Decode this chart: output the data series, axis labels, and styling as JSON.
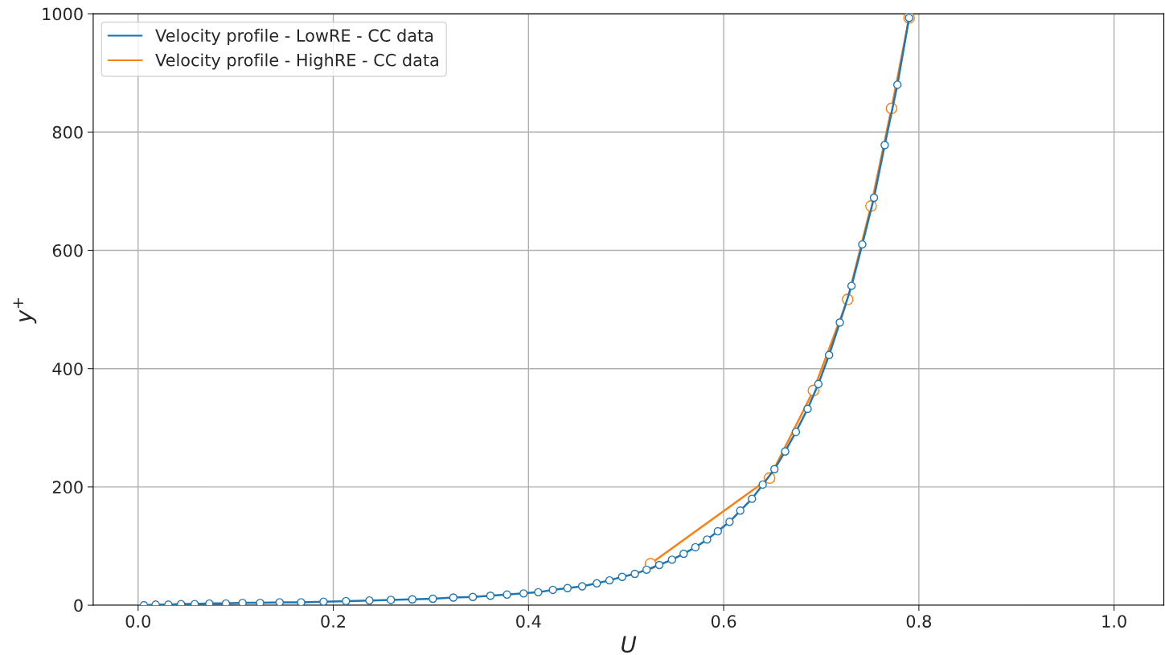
{
  "chart_data": {
    "type": "line",
    "xlabel": "U",
    "ylabel": "y$^{+}$",
    "xlim": [
      -0.046,
      1.051
    ],
    "ylim": [
      0,
      1000
    ],
    "xticks": [
      {
        "value": 0,
        "label": "0.0"
      },
      0.2,
      0.4,
      0.6,
      0.8,
      {
        "value": 1,
        "label": "1.0"
      }
    ],
    "yticks": [
      0,
      200,
      400,
      600,
      800,
      1000
    ],
    "grid": true,
    "legend": "top left",
    "marker": "circle",
    "line_style": "solid",
    "series": [
      {
        "name": "Velocity profile - LowRE - CC data",
        "color": "#1f77b4",
        "x": [
          0.006,
          0.018,
          0.031,
          0.044,
          0.058,
          0.073,
          0.09,
          0.107,
          0.125,
          0.145,
          0.167,
          0.19,
          0.213,
          0.237,
          0.259,
          0.281,
          0.302,
          0.323,
          0.343,
          0.361,
          0.378,
          0.395,
          0.41,
          0.425,
          0.44,
          0.455,
          0.47,
          0.483,
          0.496,
          0.509,
          0.521,
          0.534,
          0.547,
          0.559,
          0.571,
          0.583,
          0.594,
          0.606,
          0.617,
          0.629,
          0.64,
          0.652,
          0.663,
          0.674,
          0.686,
          0.697,
          0.708,
          0.719,
          0.731,
          0.742,
          0.754,
          0.765,
          0.778,
          0.79
        ],
        "values": [
          0,
          1,
          1,
          2,
          2,
          3,
          3,
          4,
          4,
          5,
          5,
          6,
          7,
          8,
          9,
          10,
          11,
          13,
          14,
          16,
          18,
          20,
          22,
          26,
          29,
          32,
          37,
          42,
          48,
          53,
          60,
          68,
          77,
          87,
          98,
          111,
          125,
          141,
          160,
          180,
          204,
          230,
          260,
          293,
          332,
          374,
          423,
          478,
          540,
          610,
          689,
          778,
          880,
          993
        ]
      },
      {
        "name": "Velocity profile - HighRE - CC data",
        "color": "#ff7f0e",
        "x": [
          0.525,
          0.647,
          0.692,
          0.727,
          0.751,
          0.772,
          0.79
        ],
        "values": [
          70,
          215,
          363,
          517,
          675,
          840,
          993
        ]
      }
    ]
  }
}
